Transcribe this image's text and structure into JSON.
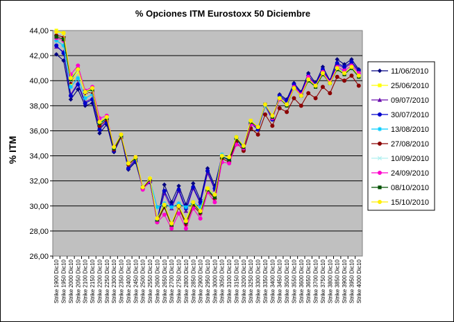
{
  "chart_data": {
    "type": "line",
    "title": "%  Opciones ITM Eurostoxx 50 Diciembre",
    "xlabel": "",
    "ylabel": "% ITM",
    "ylim": [
      26,
      44
    ],
    "yticks": [
      "26,00",
      "28,00",
      "30,00",
      "32,00",
      "34,00",
      "36,00",
      "38,00",
      "40,00",
      "42,00",
      "44,00"
    ],
    "grid": "horizontal",
    "legend_position": "right",
    "categories": [
      "Strike 1900 Dic10",
      "Strike 1950 Dic10",
      "Strike 2000 Dic10",
      "Strike 2050 Dic10",
      "Strike 2100 Dic10",
      "Strike 2150 Dic10",
      "Strike 2200 Dic10",
      "Strike 2250 Dic10",
      "Strike 2300 Dic10",
      "Strike 2350 Dic10",
      "Strike 2400 Dic10",
      "Strike 2450 Dic10",
      "Strike 2500 Dic10",
      "Strike 2550 Dic10",
      "Strike 2600 Dic10",
      "Strike 2650 Dic10",
      "Strike 2700 Dic10",
      "Strike 2750 Dic10",
      "Strike 2800 Dic10",
      "Strike 2850 Dic10",
      "Strike 2900 Dic10",
      "Strike 2950 Dic10",
      "Strike 3000 Dic10",
      "Strike 3050 Dic10",
      "Strike 3100 Dic10",
      "Strike 3150 Dic10",
      "Strike 3200 Dic10",
      "Strike 3250 Dic10",
      "Strike 3300 Dic10",
      "Strike 3350 Dic10",
      "Strike 3400 Dic10",
      "Strike 3450 Dic10",
      "Strike 3500 Dic10",
      "Strike 3550 Dic10",
      "Strike 3600 Dic10",
      "Strike 3650 Dic10",
      "Strike 3700 Dic10",
      "Strike 3750 Dic10",
      "Strike 3800 Dic10",
      "Strike 3850 Dic10",
      "Strike 3900 Dic10",
      "Strike 3950 Dic10",
      "Strike 4000 Dic10"
    ],
    "series": [
      {
        "name": "11/06/2010",
        "color": "#000080",
        "marker": "diamond",
        "values": [
          42.1,
          41.6,
          38.5,
          39.3,
          38.0,
          38.2,
          35.8,
          36.5,
          34.3,
          35.5,
          32.9,
          33.5,
          31.4,
          31.9,
          28.8,
          31.7,
          30.3,
          31.6,
          30.1,
          31.8,
          30.5,
          33.0,
          31.6,
          34.0,
          33.6,
          35.4,
          34.5,
          36.6,
          36.1,
          38.0,
          36.9,
          38.9,
          38.5,
          39.8,
          39.1,
          40.6,
          39.8,
          41.1,
          40.0,
          41.7,
          41.3,
          41.7,
          40.9
        ]
      },
      {
        "name": "25/06/2010",
        "color": "#FFFF00",
        "marker": "square",
        "values": [
          44.0,
          43.8,
          39.7,
          40.7,
          38.9,
          39.3,
          36.7,
          37.0,
          34.6,
          35.6,
          33.4,
          33.8,
          31.5,
          32.1,
          28.9,
          30.1,
          28.6,
          30.0,
          28.9,
          30.3,
          29.6,
          31.4,
          30.9,
          34.0,
          33.8,
          35.5,
          34.8,
          36.8,
          36.3,
          38.1,
          37.1,
          38.6,
          38.0,
          39.4,
          38.8,
          40.0,
          39.5,
          40.5,
          39.8,
          40.9,
          40.5,
          41.0,
          40.3
        ]
      },
      {
        "name": "09/07/2010",
        "color": "#6A0DAD",
        "marker": "triangle",
        "values": [
          42.7,
          42.3,
          38.9,
          39.8,
          38.3,
          38.6,
          36.2,
          36.8,
          34.5,
          35.5,
          33.1,
          33.7,
          31.5,
          32.0,
          28.9,
          31.0,
          29.8,
          31.2,
          29.6,
          31.4,
          30.2,
          32.6,
          31.3,
          34.0,
          33.7,
          35.4,
          34.6,
          36.7,
          36.2,
          38.0,
          37.0,
          38.7,
          38.3,
          39.6,
          39.0,
          40.3,
          39.7,
          40.8,
          39.9,
          41.3,
          41.0,
          41.4,
          40.7
        ]
      },
      {
        "name": "30/07/2010",
        "color": "#0000CD",
        "marker": "circle",
        "values": [
          42.8,
          42.2,
          38.8,
          39.7,
          38.2,
          38.5,
          36.1,
          36.7,
          34.4,
          35.5,
          33.0,
          33.6,
          31.4,
          31.9,
          28.8,
          31.2,
          30.0,
          31.3,
          29.8,
          31.5,
          30.3,
          32.8,
          31.4,
          34.0,
          33.6,
          35.4,
          34.5,
          36.6,
          36.1,
          38.0,
          36.9,
          38.8,
          38.4,
          39.7,
          39.0,
          40.4,
          39.7,
          40.9,
          39.9,
          41.4,
          41.1,
          41.5,
          40.8
        ]
      },
      {
        "name": "13/08/2010",
        "color": "#00CCFF",
        "marker": "star",
        "values": [
          43.2,
          42.8,
          39.5,
          40.2,
          38.6,
          38.9,
          36.5,
          37.0,
          34.6,
          35.6,
          33.3,
          33.8,
          31.5,
          32.1,
          29.9,
          30.2,
          29.9,
          30.2,
          29.9,
          30.3,
          29.9,
          31.3,
          30.9,
          34.1,
          33.8,
          35.5,
          34.8,
          36.7,
          36.3,
          38.0,
          37.1,
          38.6,
          38.1,
          39.4,
          38.8,
          40.1,
          39.6,
          40.6,
          39.8,
          41.0,
          40.7,
          41.0,
          40.4
        ]
      },
      {
        "name": "27/08/2010",
        "color": "#8B0000",
        "marker": "circle",
        "values": [
          43.6,
          43.5,
          39.9,
          40.9,
          39.0,
          39.1,
          36.4,
          36.9,
          34.5,
          35.5,
          33.3,
          33.8,
          31.4,
          32.1,
          28.7,
          29.9,
          28.4,
          29.9,
          28.5,
          30.0,
          29.4,
          31.2,
          30.6,
          33.8,
          33.5,
          35.1,
          34.4,
          36.2,
          35.7,
          37.3,
          36.4,
          37.8,
          37.5,
          38.6,
          38.0,
          39.0,
          38.6,
          39.5,
          39.0,
          40.3,
          40.0,
          40.4,
          39.6
        ]
      },
      {
        "name": "10/09/2010",
        "color": "#B0F0F0",
        "marker": "cross",
        "values": [
          43.9,
          43.7,
          40.0,
          40.8,
          39.0,
          39.2,
          36.6,
          37.0,
          34.6,
          35.6,
          33.4,
          33.8,
          31.5,
          32.2,
          29.0,
          30.1,
          28.6,
          30.0,
          28.8,
          30.2,
          29.5,
          31.3,
          30.8,
          34.0,
          33.8,
          35.4,
          34.7,
          36.7,
          36.3,
          38.1,
          37.1,
          38.6,
          38.0,
          39.4,
          38.8,
          40.0,
          39.5,
          40.5,
          39.8,
          40.9,
          40.5,
          41.0,
          40.3
        ]
      },
      {
        "name": "24/09/2010",
        "color": "#FF00CC",
        "marker": "circle",
        "values": [
          43.4,
          43.2,
          40.5,
          41.2,
          39.2,
          39.5,
          37.0,
          37.2,
          34.7,
          35.7,
          33.4,
          33.9,
          31.3,
          32.0,
          28.7,
          29.3,
          28.2,
          29.4,
          28.2,
          29.8,
          29.0,
          31.1,
          30.3,
          33.5,
          33.4,
          34.9,
          34.6,
          36.5,
          36.3,
          38.1,
          37.0,
          38.5,
          38.1,
          39.5,
          38.9,
          40.3,
          39.6,
          40.7,
          39.9,
          41.1,
          40.8,
          41.2,
          40.6
        ]
      },
      {
        "name": "08/10/2010",
        "color": "#005000",
        "marker": "square",
        "values": [
          43.5,
          43.3,
          40.1,
          40.9,
          39.1,
          39.3,
          36.6,
          37.0,
          34.6,
          35.6,
          33.4,
          33.8,
          31.5,
          32.1,
          28.9,
          30.0,
          28.5,
          30.0,
          28.7,
          30.2,
          29.5,
          31.3,
          30.7,
          33.9,
          33.7,
          35.4,
          34.7,
          36.7,
          36.3,
          38.1,
          37.1,
          38.6,
          38.0,
          39.4,
          38.8,
          40.0,
          39.5,
          40.5,
          39.8,
          40.9,
          40.5,
          41.0,
          40.3
        ]
      },
      {
        "name": "15/10/2010",
        "color": "#FFEE00",
        "marker": "circle",
        "values": [
          43.9,
          43.8,
          40.2,
          40.9,
          39.1,
          39.4,
          36.7,
          37.1,
          34.7,
          35.7,
          33.4,
          33.9,
          31.5,
          32.2,
          29.0,
          30.1,
          28.6,
          30.0,
          28.8,
          30.3,
          29.6,
          31.4,
          30.9,
          34.0,
          33.9,
          35.5,
          34.8,
          36.8,
          36.3,
          38.1,
          37.2,
          38.6,
          38.1,
          39.4,
          38.8,
          40.1,
          39.6,
          40.6,
          39.8,
          41.0,
          40.6,
          41.1,
          40.4
        ]
      }
    ]
  }
}
